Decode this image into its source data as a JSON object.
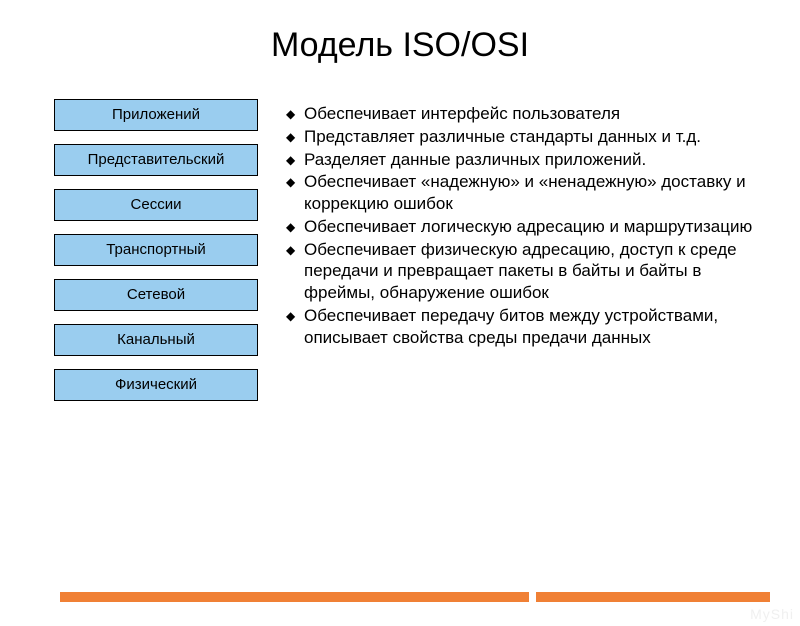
{
  "title": "Модель ISO/OSI",
  "layers": [
    {
      "label": "Приложений"
    },
    {
      "label": "Представительский"
    },
    {
      "label": "Сессии"
    },
    {
      "label": "Транспортный"
    },
    {
      "label": "Сетевой"
    },
    {
      "label": "Канальный"
    },
    {
      "label": "Физический"
    }
  ],
  "layer_box": {
    "fill": "#9acdef",
    "border": "#000000",
    "fontsize": 15
  },
  "bullets": [
    "Обеспечивает интерфейс пользователя",
    "Представляет различные стандарты данных и т.д.",
    "Разделяет данные различных приложений.",
    "Обеспечивает «надежную» и «ненадежную» доставку и коррекцию ошибок",
    "Обеспечивает логическую адресацию и маршрутизацию",
    "Обеспечивает физическую адресацию, доступ к среде передачи и превращает пакеты в байты и байты в фреймы, обнаружение ошибок",
    "Обеспечивает передачу битов между устройствами, описывает свойства среды предачи данных"
  ],
  "bullet_marker": "◆",
  "colors": {
    "background": "#ffffff",
    "text": "#000000",
    "footer_bar": "#f08035",
    "watermark": "#f0f0f0"
  },
  "watermark": "MyShi"
}
